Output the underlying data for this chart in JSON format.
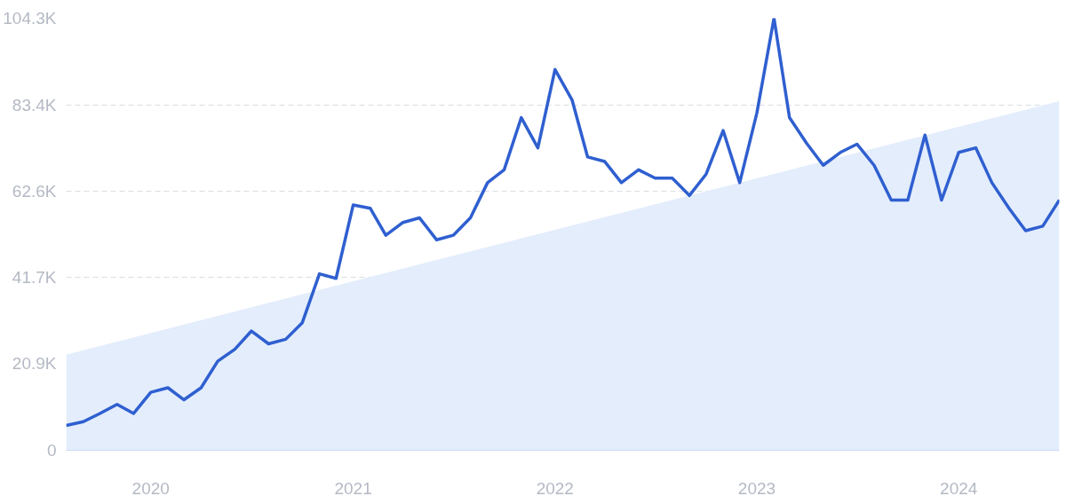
{
  "chart_data": {
    "type": "line",
    "x": [
      "2019-08",
      "2019-09",
      "2019-10",
      "2019-11",
      "2019-12",
      "2020-01",
      "2020-02",
      "2020-03",
      "2020-04",
      "2020-05",
      "2020-06",
      "2020-07",
      "2020-08",
      "2020-09",
      "2020-10",
      "2020-11",
      "2020-12",
      "2021-01",
      "2021-02",
      "2021-03",
      "2021-04",
      "2021-05",
      "2021-06",
      "2021-07",
      "2021-08",
      "2021-09",
      "2021-10",
      "2021-11",
      "2021-12",
      "2022-01",
      "2022-02",
      "2022-03",
      "2022-04",
      "2022-05",
      "2022-06",
      "2022-07",
      "2022-08",
      "2022-09",
      "2022-10",
      "2022-11",
      "2022-12",
      "2023-01",
      "2023-02",
      "2023-03",
      "2023-04",
      "2023-05",
      "2023-06",
      "2023-07",
      "2023-08",
      "2023-09",
      "2023-10",
      "2023-11",
      "2023-12",
      "2024-01",
      "2024-02",
      "2024-03",
      "2024-04",
      "2024-05",
      "2024-06",
      "2024-07"
    ],
    "series": [
      {
        "type": "area",
        "x": [
          "2019-08",
          "2024-07"
        ],
        "values": [
          23100,
          84300
        ],
        "color": "#e3edfc"
      },
      {
        "color": "#2f5fd0",
        "values": [
          6000,
          6900,
          8900,
          11100,
          8900,
          14000,
          15100,
          12200,
          15100,
          21500,
          24400,
          28800,
          25700,
          26800,
          30800,
          42600,
          41500,
          59200,
          58400,
          51900,
          55000,
          56100,
          50800,
          51900,
          56100,
          64600,
          67700,
          80300,
          73000,
          91900,
          84500,
          70800,
          69700,
          64600,
          67700,
          65700,
          65700,
          61500,
          66600,
          77200,
          64600,
          81400,
          104300,
          80300,
          74100,
          68800,
          71900,
          73900,
          68800,
          60400,
          60400,
          76100,
          60400,
          71900,
          73000,
          64600,
          58400,
          53000,
          54100,
          60400
        ]
      }
    ],
    "xlim": [
      "2019-08",
      "2024-07"
    ],
    "xticks": [
      {
        "value": "2020-01",
        "label": "2020"
      },
      {
        "value": "2021-01",
        "label": "2021"
      },
      {
        "value": "2022-01",
        "label": "2022"
      },
      {
        "value": "2023-01",
        "label": "2023"
      },
      {
        "value": "2024-01",
        "label": "2024"
      }
    ],
    "ylim": [
      0,
      104300
    ],
    "yticks": [
      0,
      {
        "value": 20900,
        "label": "20.9K"
      },
      {
        "value": 41700,
        "label": "41.7K"
      },
      {
        "value": 62600,
        "label": "62.6K"
      },
      {
        "value": 83400,
        "label": "83.4K"
      },
      {
        "value": 104300,
        "label": "104.3K"
      }
    ],
    "grid": "y",
    "line_style": "solid"
  }
}
